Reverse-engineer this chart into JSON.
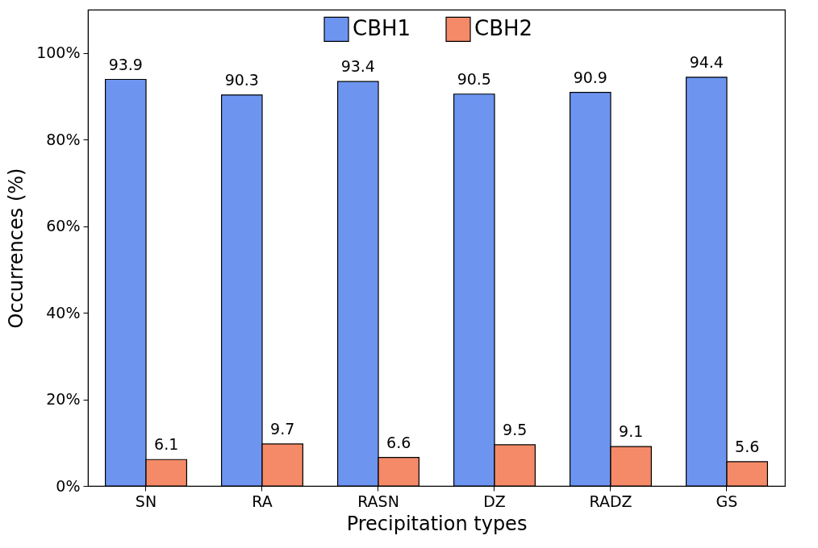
{
  "chart_data": {
    "type": "bar",
    "xlabel": "Precipitation types",
    "ylabel": "Occurrences (%)",
    "categories": [
      "SN",
      "RA",
      "RASN",
      "DZ",
      "RADZ",
      "GS"
    ],
    "series": [
      {
        "name": "CBH1",
        "color": "#6d95f0",
        "values": [
          93.9,
          90.3,
          93.4,
          90.5,
          90.9,
          94.4
        ]
      },
      {
        "name": "CBH2",
        "color": "#f58a68",
        "values": [
          6.1,
          9.7,
          6.6,
          9.5,
          9.1,
          5.6
        ]
      }
    ],
    "ylim": [
      0,
      110
    ],
    "yticks": [
      {
        "value": 0,
        "label": "0%"
      },
      {
        "value": 20,
        "label": "20%"
      },
      {
        "value": 40,
        "label": "40%"
      },
      {
        "value": 60,
        "label": "60%"
      },
      {
        "value": 80,
        "label": "80%"
      },
      {
        "value": 100,
        "label": "100%"
      }
    ],
    "data_labels": true,
    "grid": false,
    "legend": "top"
  }
}
